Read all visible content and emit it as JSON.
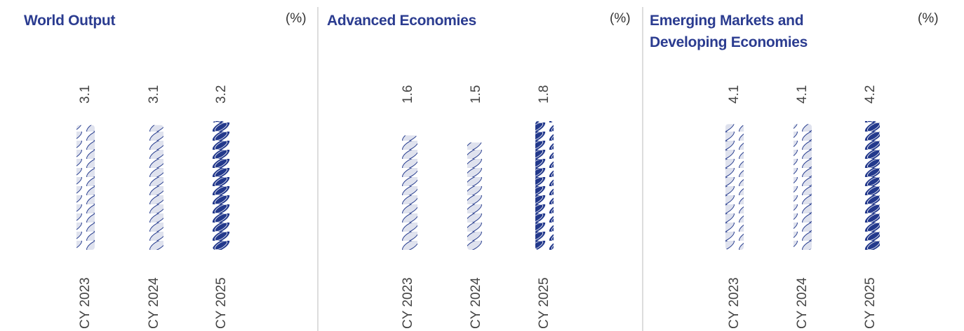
{
  "chart_data": [
    {
      "type": "pictorial-bar",
      "title": "World Output",
      "unit": "(%)",
      "categories": [
        "CY 2023",
        "CY 2024",
        "CY 2025"
      ],
      "values": [
        3.1,
        3.1,
        3.2
      ],
      "colors": [
        "#dfe2ee",
        "#dfe2ee",
        "#23398c"
      ],
      "ylim": [
        0,
        3.2
      ]
    },
    {
      "type": "pictorial-bar",
      "title": "Advanced Economies",
      "unit": "(%)",
      "categories": [
        "CY 2023",
        "CY 2024",
        "CY 2025"
      ],
      "values": [
        1.6,
        1.5,
        1.8
      ],
      "colors": [
        "#dfe2ee",
        "#dfe2ee",
        "#23398c"
      ],
      "ylim": [
        0,
        1.8
      ]
    },
    {
      "type": "pictorial-bar",
      "title": "Emerging Markets and Developing Economies",
      "unit": "(%)",
      "categories": [
        "CY 2023",
        "CY 2024",
        "CY 2025"
      ],
      "values": [
        4.1,
        4.1,
        4.2
      ],
      "colors": [
        "#dfe2ee",
        "#dfe2ee",
        "#23398c"
      ],
      "ylim": [
        0,
        4.2
      ]
    }
  ]
}
